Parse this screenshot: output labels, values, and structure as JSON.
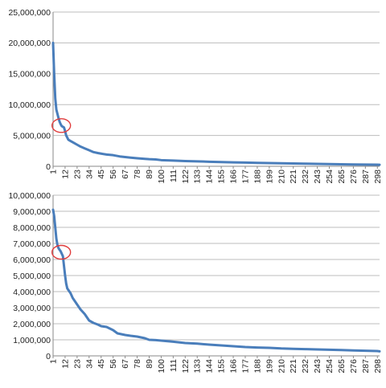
{
  "series_color": "#4a7ebb",
  "highlight_color": "#e03c3c",
  "chart_data": [
    {
      "type": "line",
      "grid": true,
      "x_ticks": [
        "1",
        "12",
        "23",
        "34",
        "45",
        "56",
        "67",
        "78",
        "89",
        "100",
        "111",
        "122",
        "133",
        "144",
        "155",
        "166",
        "177",
        "188",
        "199",
        "210",
        "221",
        "232",
        "243",
        "254",
        "265",
        "276",
        "287",
        "298"
      ],
      "x_range": [
        1,
        300
      ],
      "ylim": [
        0,
        25000000
      ],
      "y_ticks": [
        "0",
        "5,000,000",
        "10,000,000",
        "15,000,000",
        "20,000,000",
        "25,000,000"
      ],
      "y_tick_values": [
        0,
        5000000,
        10000000,
        15000000,
        20000000,
        25000000
      ],
      "series": [
        {
          "x": [
            1,
            2,
            3,
            4,
            5,
            6,
            7,
            8,
            9,
            10,
            11,
            12,
            13,
            15,
            17,
            20,
            23,
            26,
            30,
            34,
            38,
            42,
            45,
            50,
            56,
            62,
            67,
            72,
            78,
            85,
            89,
            95,
            100,
            111,
            122,
            133,
            144,
            155,
            166,
            177,
            188,
            199,
            210,
            221,
            232,
            243,
            254,
            265,
            276,
            287,
            298,
            300
          ],
          "y": [
            20000000,
            15000000,
            11000000,
            9200000,
            8500000,
            7800000,
            7200000,
            6800000,
            6500000,
            6400000,
            6300000,
            5700000,
            5000000,
            4300000,
            4100000,
            3800000,
            3500000,
            3200000,
            2900000,
            2600000,
            2300000,
            2150000,
            2050000,
            1900000,
            1800000,
            1600000,
            1500000,
            1400000,
            1300000,
            1200000,
            1150000,
            1100000,
            1000000,
            920000,
            850000,
            790000,
            740000,
            680000,
            640000,
            600000,
            560000,
            520000,
            480000,
            450000,
            420000,
            390000,
            360000,
            330000,
            300000,
            280000,
            260000,
            250000
          ]
        }
      ],
      "annotation": {
        "type": "ellipse",
        "x": 8.5,
        "y": 6600000
      }
    },
    {
      "type": "line",
      "grid": true,
      "x_ticks": [
        "1",
        "12",
        "23",
        "34",
        "45",
        "56",
        "67",
        "78",
        "89",
        "100",
        "111",
        "122",
        "133",
        "144",
        "155",
        "166",
        "177",
        "188",
        "199",
        "210",
        "221",
        "232",
        "243",
        "254",
        "265",
        "276",
        "287",
        "298"
      ],
      "x_range": [
        1,
        300
      ],
      "ylim": [
        0,
        10000000
      ],
      "y_ticks": [
        "0",
        "1,000,000",
        "2,000,000",
        "3,000,000",
        "4,000,000",
        "5,000,000",
        "6,000,000",
        "7,000,000",
        "8,000,000",
        "9,000,000",
        "10,000,000"
      ],
      "y_tick_values": [
        0,
        1000000,
        2000000,
        3000000,
        4000000,
        5000000,
        6000000,
        7000000,
        8000000,
        9000000,
        10000000
      ],
      "series": [
        {
          "x": [
            1,
            2,
            3,
            4,
            5,
            6,
            7,
            8,
            9,
            10,
            11,
            12,
            13,
            14,
            15,
            17,
            19,
            21,
            23,
            26,
            30,
            34,
            38,
            42,
            45,
            50,
            56,
            60,
            67,
            72,
            78,
            85,
            89,
            95,
            100,
            111,
            122,
            133,
            144,
            155,
            166,
            177,
            188,
            199,
            210,
            221,
            232,
            243,
            254,
            265,
            276,
            287,
            298,
            300
          ],
          "y": [
            9100000,
            8700000,
            8000000,
            7300000,
            6900000,
            6700000,
            6600000,
            6500000,
            6350000,
            6200000,
            5600000,
            5000000,
            4500000,
            4200000,
            4100000,
            3900000,
            3600000,
            3400000,
            3200000,
            2900000,
            2600000,
            2200000,
            2050000,
            1950000,
            1850000,
            1800000,
            1600000,
            1400000,
            1300000,
            1250000,
            1200000,
            1100000,
            1000000,
            980000,
            950000,
            880000,
            800000,
            760000,
            700000,
            650000,
            600000,
            550000,
            520000,
            500000,
            460000,
            440000,
            420000,
            400000,
            380000,
            360000,
            340000,
            320000,
            300000,
            280000
          ]
        }
      ],
      "annotation": {
        "type": "ellipse",
        "x": 8.5,
        "y": 6450000
      }
    }
  ]
}
